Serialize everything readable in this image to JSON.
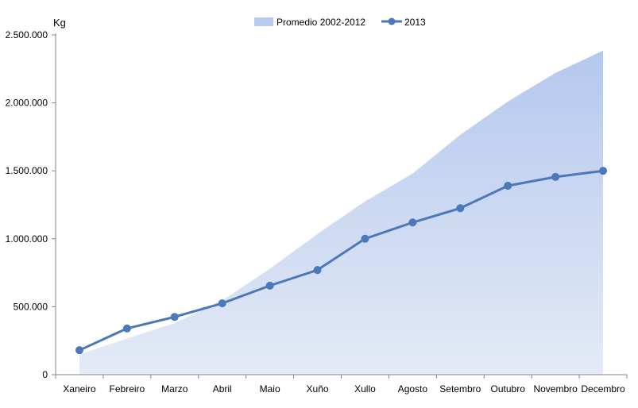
{
  "chart_data": {
    "type": "line",
    "unit_label": "Kg",
    "categories": [
      "Xaneiro",
      "Febreiro",
      "Marzo",
      "Abril",
      "Maio",
      "Xuño",
      "Xullo",
      "Agosto",
      "Setembro",
      "Outubro",
      "Novembro",
      "Decembro"
    ],
    "ylim": [
      0,
      2500000
    ],
    "yticks": [
      0,
      500000,
      1000000,
      1500000,
      2000000,
      2500000
    ],
    "ytick_labels": [
      "0",
      "500.000",
      "1.000.000",
      "1.500.000",
      "2.000.000",
      "2.500.000"
    ],
    "grid": false,
    "legend_position": "top",
    "series": [
      {
        "name": "Promedio 2002-2012",
        "kind": "area",
        "color": "#b8cbee",
        "values": [
          150000,
          265000,
          380000,
          545000,
          780000,
          1035000,
          1275000,
          1480000,
          1765000,
          2010000,
          2220000,
          2385000
        ]
      },
      {
        "name": "2013",
        "kind": "line",
        "color": "#4a78b8",
        "values": [
          180000,
          340000,
          425000,
          525000,
          655000,
          770000,
          1000000,
          1120000,
          1225000,
          1390000,
          1455000,
          1500000
        ]
      }
    ]
  }
}
